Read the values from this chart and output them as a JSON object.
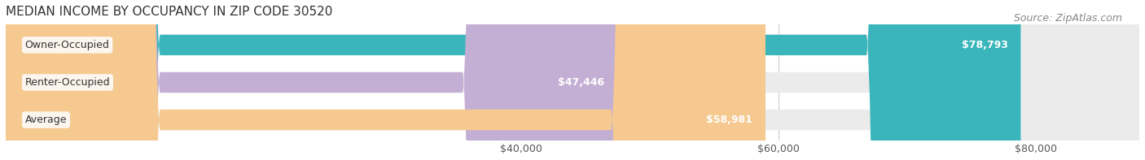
{
  "title": "MEDIAN INCOME BY OCCUPANCY IN ZIP CODE 30520",
  "source": "Source: ZipAtlas.com",
  "categories": [
    "Owner-Occupied",
    "Renter-Occupied",
    "Average"
  ],
  "values": [
    78793,
    47446,
    58981
  ],
  "bar_colors": [
    "#3ab5bb",
    "#c4afd4",
    "#f5c990"
  ],
  "bar_bg_color": "#ebebeb",
  "value_labels": [
    "$78,793",
    "$47,446",
    "$58,981"
  ],
  "xmin": 0,
  "xmax": 88000,
  "xticks": [
    40000,
    60000,
    80000
  ],
  "xticklabels": [
    "$40,000",
    "$60,000",
    "$80,000"
  ],
  "title_fontsize": 11,
  "label_fontsize": 9,
  "tick_fontsize": 9,
  "source_fontsize": 9,
  "bar_height": 0.55,
  "figsize": [
    14.06,
    1.97
  ],
  "dpi": 100
}
